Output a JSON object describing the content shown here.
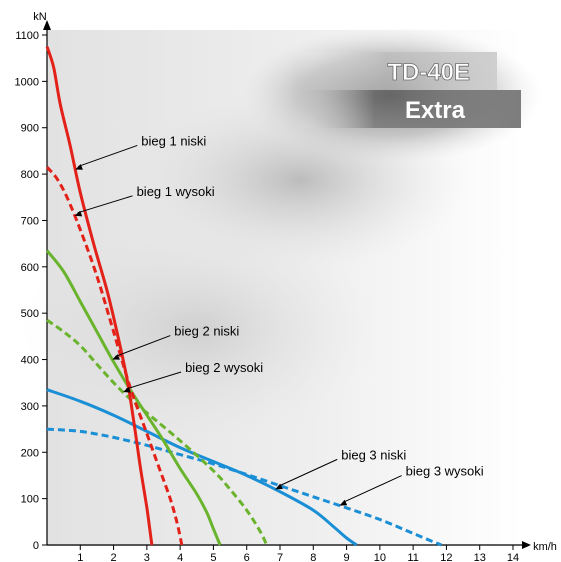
{
  "chart_data": {
    "type": "line",
    "title": "",
    "badge": {
      "line1": "TD-40E",
      "line2": "Extra"
    },
    "xlabel": "km/h",
    "ylabel": "kN",
    "xlim": [
      0,
      14
    ],
    "ylim": [
      0,
      1100
    ],
    "xticks": [
      1,
      2,
      3,
      4,
      5,
      6,
      7,
      8,
      9,
      10,
      11,
      12,
      13,
      14
    ],
    "yticks": [
      0,
      100,
      200,
      300,
      400,
      500,
      600,
      700,
      800,
      900,
      1000,
      1100
    ],
    "grid": false,
    "legend": "inline labels with arrows",
    "series": [
      {
        "name": "bieg 1 niski",
        "color": "#e32119",
        "dash": false,
        "x": [
          0,
          0.2,
          0.4,
          0.7,
          1.0,
          1.4,
          1.8,
          2.1,
          2.4,
          2.6,
          2.8,
          3.0,
          3.15
        ],
        "y": [
          1075,
          1030,
          950,
          860,
          760,
          650,
          550,
          460,
          360,
          270,
          170,
          80,
          0
        ]
      },
      {
        "name": "bieg 1 wysoki",
        "color": "#e32119",
        "dash": true,
        "x": [
          0,
          0.3,
          0.6,
          1.0,
          1.5,
          2.0,
          2.5,
          3.0,
          3.4,
          3.7,
          3.9,
          4.05
        ],
        "y": [
          815,
          790,
          750,
          680,
          580,
          460,
          340,
          240,
          160,
          100,
          50,
          0
        ]
      },
      {
        "name": "bieg 2 niski",
        "color": "#6ab42d",
        "dash": false,
        "x": [
          0,
          0.5,
          1.0,
          1.5,
          2.0,
          2.5,
          3.0,
          3.5,
          4.0,
          4.5,
          4.8,
          5.0,
          5.2
        ],
        "y": [
          635,
          590,
          525,
          460,
          395,
          335,
          280,
          225,
          165,
          110,
          70,
          35,
          0
        ]
      },
      {
        "name": "bieg 2 wysoki",
        "color": "#6ab42d",
        "dash": true,
        "x": [
          0,
          0.5,
          1.0,
          1.5,
          2.0,
          2.5,
          3.0,
          4.0,
          5.0,
          5.5,
          6.0,
          6.4,
          6.6
        ],
        "y": [
          485,
          460,
          430,
          390,
          350,
          315,
          285,
          225,
          160,
          120,
          75,
          30,
          0
        ]
      },
      {
        "name": "bieg 3 niski",
        "color": "#1a8fd6",
        "dash": false,
        "x": [
          0,
          1.0,
          2.0,
          3.0,
          4.0,
          5.0,
          6.0,
          7.0,
          8.0,
          8.6,
          9.0,
          9.3
        ],
        "y": [
          335,
          310,
          280,
          245,
          210,
          180,
          150,
          115,
          75,
          40,
          15,
          0
        ]
      },
      {
        "name": "bieg 3 wysoki",
        "color": "#1a8fd6",
        "dash": true,
        "x": [
          0,
          1.0,
          2.0,
          3.0,
          4.0,
          5.0,
          6.0,
          7.0,
          8.0,
          9.0,
          10.0,
          11.0,
          11.5,
          11.85
        ],
        "y": [
          250,
          245,
          232,
          215,
          195,
          175,
          152,
          128,
          104,
          80,
          55,
          25,
          10,
          0
        ]
      }
    ],
    "annotations": [
      {
        "text": "bieg 1 niski",
        "series": "bieg 1 niski"
      },
      {
        "text": "bieg 1 wysoki",
        "series": "bieg 1 wysoki"
      },
      {
        "text": "bieg 2 niski",
        "series": "bieg 2 niski"
      },
      {
        "text": "bieg 2 wysoki",
        "series": "bieg 2 wysoki"
      },
      {
        "text": "bieg 3 niski",
        "series": "bieg 3 niski"
      },
      {
        "text": "bieg 3 wysoki",
        "series": "bieg 3 wysoki"
      }
    ]
  }
}
